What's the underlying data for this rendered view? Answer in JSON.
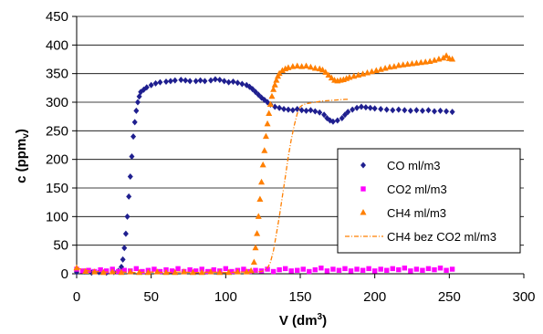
{
  "chart_data": {
    "type": "scatter",
    "xlabel": "V (dm",
    "xlabel_sup": "3",
    "xlabel_end": ")",
    "ylabel": "c (ppmv)",
    "xlim": [
      0,
      300
    ],
    "ylim": [
      0,
      450
    ],
    "xticks": [
      0,
      50,
      100,
      150,
      200,
      250,
      300
    ],
    "yticks": [
      0,
      50,
      100,
      150,
      200,
      250,
      300,
      350,
      400,
      450
    ],
    "grid": "horizontal",
    "legend_position": "bottom-right",
    "series": [
      {
        "name": "CO ml/m3",
        "color": "#1f1f8f",
        "marker": "diamond",
        "points": [
          [
            0,
            3
          ],
          [
            5,
            4
          ],
          [
            10,
            2
          ],
          [
            15,
            3
          ],
          [
            20,
            2
          ],
          [
            25,
            3
          ],
          [
            28,
            5
          ],
          [
            30,
            12
          ],
          [
            31,
            25
          ],
          [
            32,
            45
          ],
          [
            33,
            70
          ],
          [
            34,
            100
          ],
          [
            35,
            135
          ],
          [
            36,
            170
          ],
          [
            37,
            205
          ],
          [
            38,
            240
          ],
          [
            39,
            265
          ],
          [
            40,
            285
          ],
          [
            41,
            300
          ],
          [
            42,
            310
          ],
          [
            43,
            318
          ],
          [
            45,
            322
          ],
          [
            47,
            326
          ],
          [
            50,
            330
          ],
          [
            53,
            333
          ],
          [
            56,
            335
          ],
          [
            60,
            336
          ],
          [
            63,
            337
          ],
          [
            66,
            338
          ],
          [
            70,
            339
          ],
          [
            73,
            338
          ],
          [
            76,
            337
          ],
          [
            80,
            337
          ],
          [
            83,
            338
          ],
          [
            86,
            337
          ],
          [
            90,
            338
          ],
          [
            93,
            340
          ],
          [
            96,
            339
          ],
          [
            99,
            337
          ],
          [
            102,
            335
          ],
          [
            105,
            336
          ],
          [
            108,
            334
          ],
          [
            111,
            332
          ],
          [
            114,
            330
          ],
          [
            116,
            327
          ],
          [
            118,
            323
          ],
          [
            120,
            318
          ],
          [
            122,
            313
          ],
          [
            124,
            308
          ],
          [
            126,
            304
          ],
          [
            128,
            300
          ],
          [
            130,
            296
          ],
          [
            133,
            292
          ],
          [
            136,
            290
          ],
          [
            139,
            288
          ],
          [
            142,
            287
          ],
          [
            145,
            286
          ],
          [
            148,
            288
          ],
          [
            151,
            286
          ],
          [
            154,
            285
          ],
          [
            157,
            286
          ],
          [
            160,
            284
          ],
          [
            163,
            282
          ],
          [
            166,
            278
          ],
          [
            168,
            272
          ],
          [
            170,
            268
          ],
          [
            172,
            266
          ],
          [
            175,
            268
          ],
          [
            178,
            272
          ],
          [
            180,
            278
          ],
          [
            182,
            283
          ],
          [
            185,
            287
          ],
          [
            188,
            290
          ],
          [
            191,
            292
          ],
          [
            194,
            291
          ],
          [
            197,
            290
          ],
          [
            200,
            289
          ],
          [
            204,
            288
          ],
          [
            208,
            287
          ],
          [
            212,
            286
          ],
          [
            216,
            287
          ],
          [
            220,
            286
          ],
          [
            224,
            285
          ],
          [
            228,
            286
          ],
          [
            232,
            285
          ],
          [
            236,
            286
          ],
          [
            240,
            284
          ],
          [
            244,
            285
          ],
          [
            248,
            284
          ],
          [
            252,
            283
          ]
        ]
      },
      {
        "name": "CO2 ml/m3",
        "color": "#ff00ff",
        "marker": "square",
        "points": [
          [
            0,
            8
          ],
          [
            4,
            5
          ],
          [
            8,
            6
          ],
          [
            12,
            4
          ],
          [
            16,
            7
          ],
          [
            20,
            5
          ],
          [
            24,
            8
          ],
          [
            28,
            4
          ],
          [
            32,
            6
          ],
          [
            36,
            5
          ],
          [
            40,
            9
          ],
          [
            44,
            4
          ],
          [
            48,
            6
          ],
          [
            52,
            8
          ],
          [
            56,
            4
          ],
          [
            60,
            7
          ],
          [
            64,
            5
          ],
          [
            68,
            9
          ],
          [
            72,
            4
          ],
          [
            76,
            7
          ],
          [
            80,
            5
          ],
          [
            84,
            8
          ],
          [
            88,
            4
          ],
          [
            92,
            7
          ],
          [
            96,
            5
          ],
          [
            100,
            9
          ],
          [
            104,
            4
          ],
          [
            108,
            6
          ],
          [
            112,
            8
          ],
          [
            116,
            4
          ],
          [
            120,
            6
          ],
          [
            124,
            5
          ],
          [
            128,
            8
          ],
          [
            132,
            4
          ],
          [
            136,
            7
          ],
          [
            140,
            9
          ],
          [
            144,
            5
          ],
          [
            148,
            6
          ],
          [
            152,
            8
          ],
          [
            156,
            4
          ],
          [
            160,
            7
          ],
          [
            164,
            10
          ],
          [
            168,
            5
          ],
          [
            172,
            8
          ],
          [
            176,
            6
          ],
          [
            180,
            9
          ],
          [
            184,
            5
          ],
          [
            188,
            8
          ],
          [
            192,
            6
          ],
          [
            196,
            9
          ],
          [
            200,
            5
          ],
          [
            204,
            8
          ],
          [
            208,
            6
          ],
          [
            212,
            9
          ],
          [
            216,
            7
          ],
          [
            220,
            10
          ],
          [
            224,
            5
          ],
          [
            228,
            8
          ],
          [
            232,
            6
          ],
          [
            236,
            9
          ],
          [
            240,
            7
          ],
          [
            244,
            10
          ],
          [
            248,
            6
          ],
          [
            252,
            8
          ]
        ]
      },
      {
        "name": "CH4 ml/m3",
        "color": "#ff7f00",
        "marker": "triangle",
        "points": [
          [
            0,
            10
          ],
          [
            6,
            4
          ],
          [
            12,
            3
          ],
          [
            18,
            2
          ],
          [
            24,
            3
          ],
          [
            30,
            2
          ],
          [
            36,
            3
          ],
          [
            42,
            2
          ],
          [
            48,
            2
          ],
          [
            54,
            3
          ],
          [
            60,
            2
          ],
          [
            66,
            2
          ],
          [
            72,
            3
          ],
          [
            78,
            2
          ],
          [
            84,
            2
          ],
          [
            90,
            3
          ],
          [
            96,
            2
          ],
          [
            102,
            2
          ],
          [
            108,
            3
          ],
          [
            114,
            3
          ],
          [
            117,
            5
          ],
          [
            119,
            20
          ],
          [
            120,
            45
          ],
          [
            121,
            70
          ],
          [
            122,
            100
          ],
          [
            123,
            130
          ],
          [
            124,
            160
          ],
          [
            125,
            190
          ],
          [
            126,
            215
          ],
          [
            127,
            240
          ],
          [
            128,
            262
          ],
          [
            129,
            280
          ],
          [
            130,
            296
          ],
          [
            131,
            310
          ],
          [
            132,
            322
          ],
          [
            133,
            330
          ],
          [
            134,
            338
          ],
          [
            135,
            345
          ],
          [
            136,
            350
          ],
          [
            138,
            355
          ],
          [
            140,
            358
          ],
          [
            142,
            360
          ],
          [
            145,
            362
          ],
          [
            148,
            363
          ],
          [
            151,
            362
          ],
          [
            154,
            363
          ],
          [
            157,
            361
          ],
          [
            160,
            359
          ],
          [
            163,
            358
          ],
          [
            165,
            356
          ],
          [
            167,
            352
          ],
          [
            169,
            347
          ],
          [
            171,
            342
          ],
          [
            173,
            338
          ],
          [
            175,
            337
          ],
          [
            177,
            338
          ],
          [
            179,
            339
          ],
          [
            181,
            341
          ],
          [
            183,
            343
          ],
          [
            186,
            345
          ],
          [
            189,
            347
          ],
          [
            192,
            349
          ],
          [
            195,
            351
          ],
          [
            198,
            353
          ],
          [
            201,
            355
          ],
          [
            204,
            357
          ],
          [
            207,
            359
          ],
          [
            210,
            361
          ],
          [
            213,
            362
          ],
          [
            216,
            364
          ],
          [
            219,
            365
          ],
          [
            222,
            366
          ],
          [
            225,
            367
          ],
          [
            228,
            368
          ],
          [
            231,
            369
          ],
          [
            234,
            370
          ],
          [
            237,
            371
          ],
          [
            240,
            373
          ],
          [
            243,
            375
          ],
          [
            246,
            377
          ],
          [
            248,
            381
          ],
          [
            250,
            376
          ],
          [
            252,
            375
          ]
        ]
      },
      {
        "name": "CH4 bez CO2 ml/m3",
        "color": "#ff7f00",
        "marker": "dash-dot",
        "points": [
          [
            0,
            10
          ],
          [
            10,
            4
          ],
          [
            20,
            3
          ],
          [
            30,
            3
          ],
          [
            40,
            2
          ],
          [
            50,
            3
          ],
          [
            60,
            2
          ],
          [
            70,
            3
          ],
          [
            80,
            2
          ],
          [
            90,
            3
          ],
          [
            100,
            2
          ],
          [
            110,
            3
          ],
          [
            120,
            3
          ],
          [
            124,
            4
          ],
          [
            126,
            6
          ],
          [
            128,
            10
          ],
          [
            130,
            20
          ],
          [
            132,
            40
          ],
          [
            134,
            70
          ],
          [
            136,
            100
          ],
          [
            138,
            135
          ],
          [
            140,
            170
          ],
          [
            142,
            205
          ],
          [
            144,
            235
          ],
          [
            146,
            260
          ],
          [
            148,
            280
          ],
          [
            150,
            292
          ],
          [
            152,
            296
          ],
          [
            155,
            298
          ],
          [
            160,
            300
          ],
          [
            165,
            302
          ],
          [
            170,
            303
          ],
          [
            175,
            304
          ],
          [
            180,
            305
          ],
          [
            182,
            305
          ]
        ]
      }
    ]
  }
}
